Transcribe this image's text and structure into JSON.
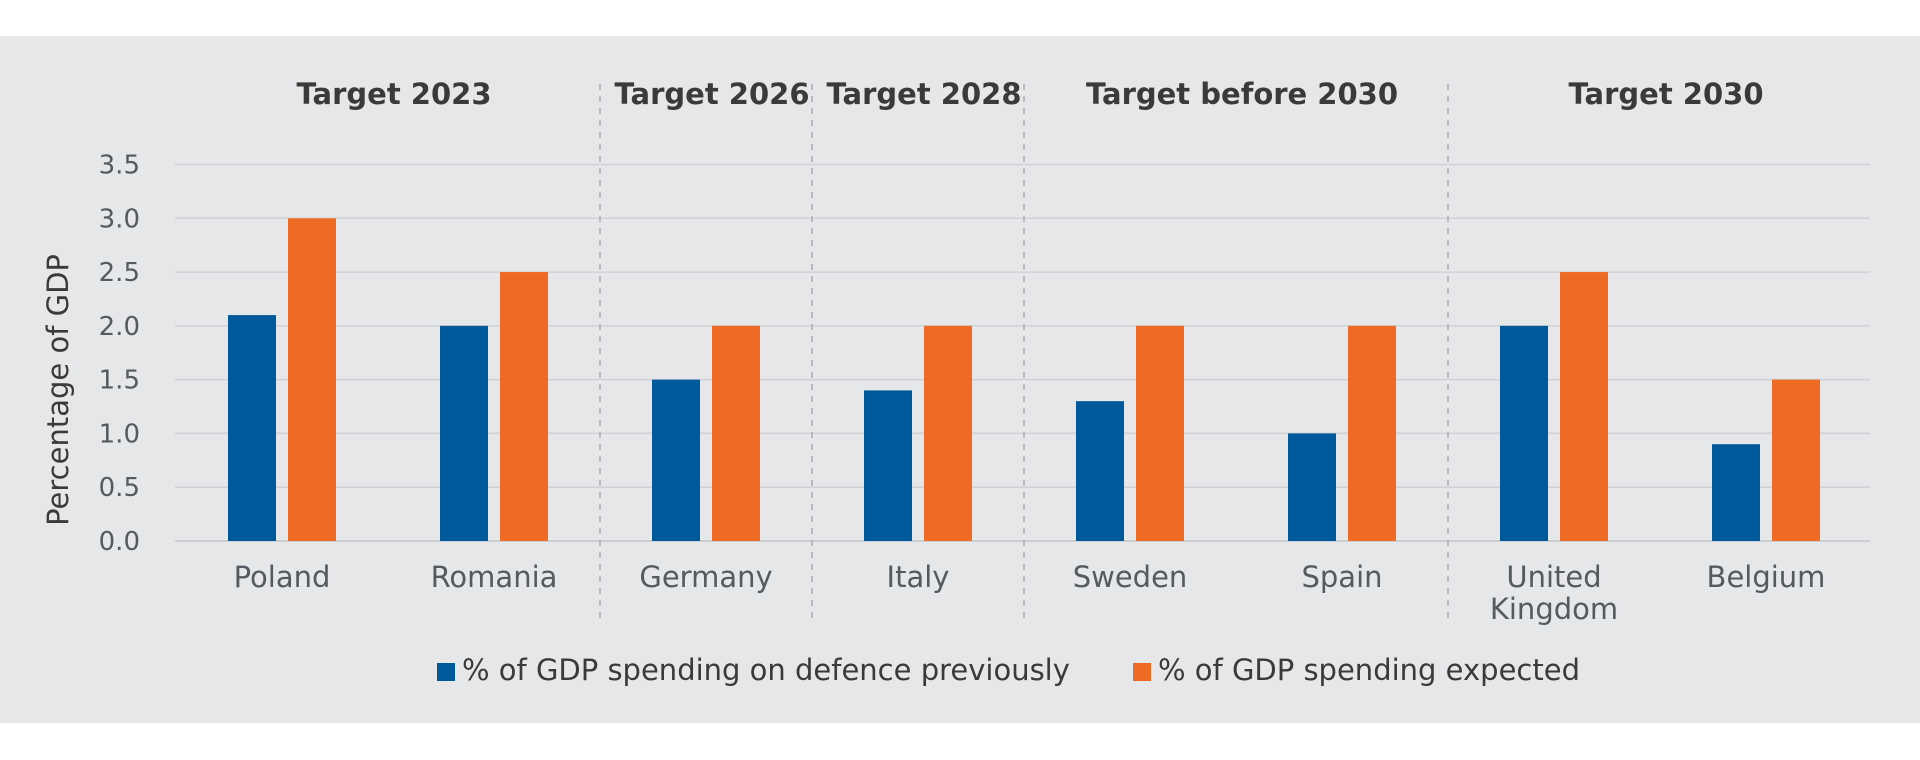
{
  "chart_data": {
    "type": "bar",
    "ylabel": "Percentage of GDP",
    "ylim": [
      0,
      3.5
    ],
    "yticks": [
      "0.0",
      "0.5",
      "1.0",
      "1.5",
      "2.0",
      "2.5",
      "3.0",
      "3.5"
    ],
    "grid": true,
    "legend_position": "bottom",
    "categories": [
      "Poland",
      "Romania",
      "Germany",
      "Italy",
      "Sweden",
      "Spain",
      "United Kingdom",
      "Belgium"
    ],
    "category_lines": [
      [
        "Poland"
      ],
      [
        "Romania"
      ],
      [
        "Germany"
      ],
      [
        "Italy"
      ],
      [
        "Sweden"
      ],
      [
        "Spain"
      ],
      [
        "United",
        "Kingdom"
      ],
      [
        "Belgium"
      ]
    ],
    "groups": [
      {
        "title": "Target 2023",
        "categories": [
          "Poland",
          "Romania"
        ]
      },
      {
        "title": "Target 2026",
        "categories": [
          "Germany"
        ]
      },
      {
        "title": "Target 2028",
        "categories": [
          "Italy"
        ]
      },
      {
        "title": "Target before 2030",
        "categories": [
          "Sweden",
          "Spain"
        ]
      },
      {
        "title": "Target 2030",
        "categories": [
          "United Kingdom",
          "Belgium"
        ]
      }
    ],
    "series": [
      {
        "name": "% of GDP spending on defence previously",
        "color": "#00599a",
        "values": [
          2.1,
          2.0,
          1.5,
          1.4,
          1.3,
          1.0,
          2.0,
          0.9
        ]
      },
      {
        "name": "% of GDP spending expected",
        "color": "#ef6b24",
        "values": [
          3.0,
          2.5,
          2.0,
          2.0,
          2.0,
          2.0,
          2.5,
          1.5
        ]
      }
    ]
  }
}
